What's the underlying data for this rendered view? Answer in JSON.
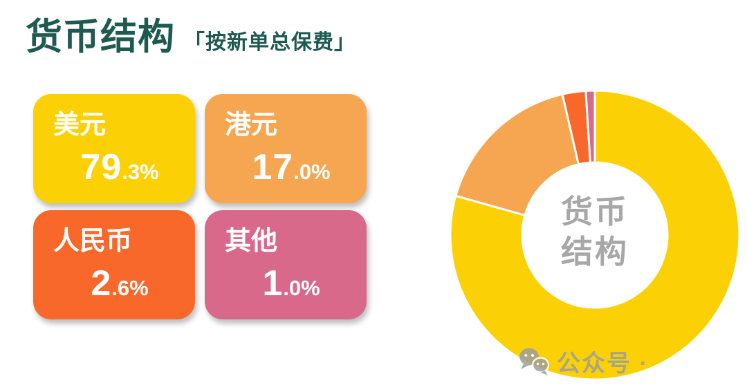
{
  "header": {
    "title": "货币结构",
    "subtitle": "「按新单总保费」"
  },
  "colors": {
    "background": "#FFFFFF",
    "title_green": "#1F5A50",
    "center_text_gray": "#A7A7A7",
    "watermark_gray": "#9E9E9E",
    "slice_gap_white": "#FFFFFF"
  },
  "chart_data": {
    "type": "pie",
    "variant": "donut",
    "title": "货币结构",
    "subtitle": "按新单总保费",
    "center_label_lines": [
      "货币",
      "结构"
    ],
    "unit": "%",
    "start_angle_deg": 0,
    "direction": "clockwise",
    "inner_radius_ratio": 0.5,
    "legend_position": "left-cards",
    "items": [
      {
        "id": "usd",
        "label": "美元",
        "value": 79.3,
        "value_int": "79",
        "value_frac": ".3%",
        "color": "#FBD106"
      },
      {
        "id": "hkd",
        "label": "港元",
        "value": 17.0,
        "value_int": "17",
        "value_frac": ".0%",
        "color": "#F6A650"
      },
      {
        "id": "rmb",
        "label": "人民币",
        "value": 2.6,
        "value_int": "2",
        "value_frac": ".6%",
        "color": "#F9682B"
      },
      {
        "id": "other",
        "label": "其他",
        "value": 1.0,
        "value_int": "1",
        "value_frac": ".0%",
        "color": "#D8698A"
      }
    ]
  },
  "watermark": {
    "icon": "wechat-icon",
    "text": "公众号 ·"
  }
}
